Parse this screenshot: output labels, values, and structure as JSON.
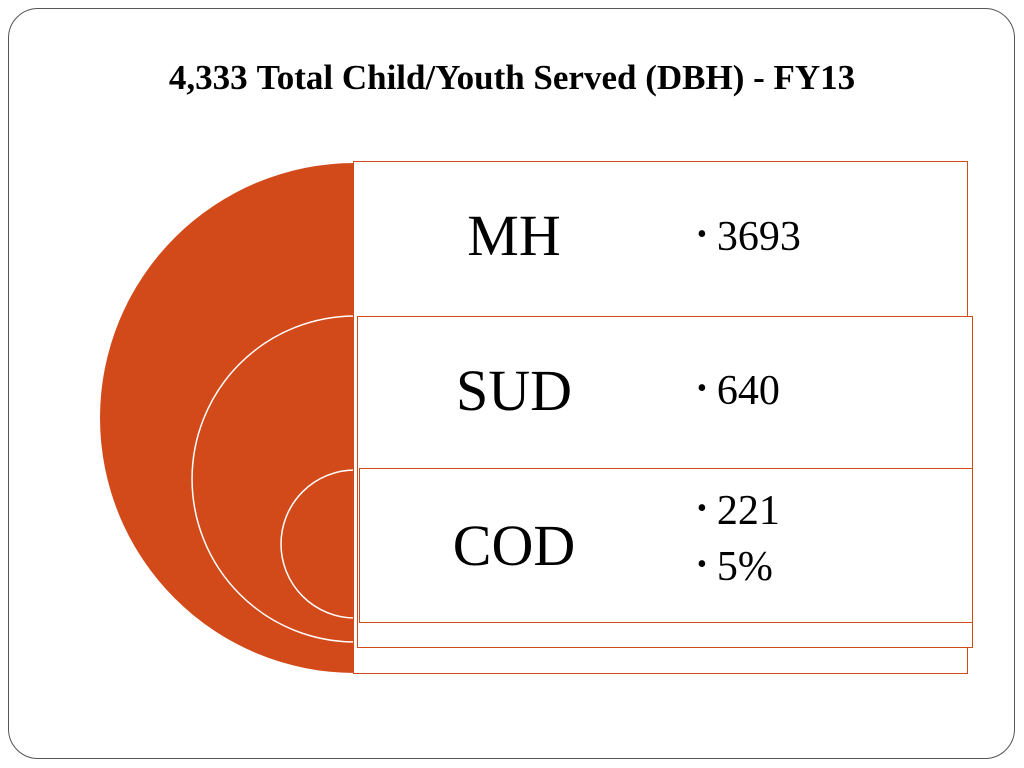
{
  "title": {
    "count": "4,333",
    "text": "Total Child/Youth Served (DBH) - FY13"
  },
  "colors": {
    "accent": "#d24a1a",
    "ring_line": "#ffffff",
    "box_border": "#d24a1a"
  },
  "diagram": {
    "type": "nested-arc",
    "rows": [
      {
        "label": "MH",
        "bullets": [
          "3693"
        ]
      },
      {
        "label": "SUD",
        "bullets": [
          "640"
        ]
      },
      {
        "label": "COD",
        "bullets": [
          "221",
          "5%"
        ]
      }
    ]
  }
}
